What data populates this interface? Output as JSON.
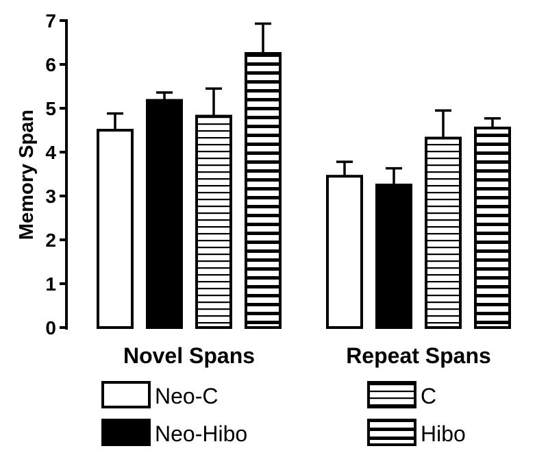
{
  "chart_data": {
    "type": "bar",
    "title": "",
    "xlabel": "",
    "ylabel": "Memory Span",
    "ylim": [
      0,
      7
    ],
    "yticks": [
      "0",
      "1",
      "2",
      "3",
      "4",
      "5",
      "6",
      "7"
    ],
    "categories": [
      "Novel Spans",
      "Repeat Spans"
    ],
    "series": [
      {
        "name": "Neo-C",
        "pattern": "open",
        "values": [
          4.5,
          3.45
        ],
        "errors": [
          0.38,
          0.33
        ]
      },
      {
        "name": "Neo-Hibo",
        "pattern": "filled",
        "values": [
          5.18,
          3.25
        ],
        "errors": [
          0.18,
          0.38
        ]
      },
      {
        "name": "C",
        "pattern": "thin-horizontal-lines",
        "values": [
          4.82,
          4.32
        ],
        "errors": [
          0.63,
          0.63
        ]
      },
      {
        "name": "Hibo",
        "pattern": "thick-horizontal-lines",
        "values": [
          6.25,
          4.55
        ],
        "errors": [
          0.68,
          0.22
        ]
      }
    ],
    "grid": false,
    "legend_position": "bottom",
    "colors": {
      "bar_stroke": "#000000",
      "filled": "#000000",
      "open": "#ffffff"
    }
  }
}
